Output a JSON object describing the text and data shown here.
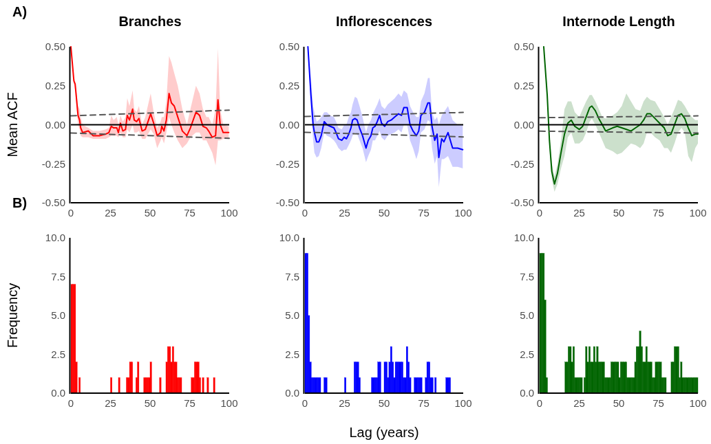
{
  "chart_data": [
    {
      "type": "line",
      "title": "Branches",
      "ylabel": "Mean ACF",
      "annotations": [
        "A)"
      ],
      "xlim": [
        0,
        100
      ],
      "xticks": [
        0,
        25,
        50,
        75,
        100
      ],
      "ylim": [
        -0.5,
        0.5
      ],
      "yticks": [
        {
          "value": -0.5,
          "label": "-0.50"
        },
        -0.25,
        {
          "value": 0,
          "label": "0.00"
        },
        0.25,
        {
          "value": 0.5,
          "label": "0.50"
        }
      ],
      "ref_lines": [
        {
          "axis": "y",
          "value": 0,
          "color": "#000000",
          "line_style": "solid"
        }
      ],
      "series": [
        {
          "type": "line",
          "color": "#555555",
          "line_style": "dashed",
          "x": [
            0,
            100
          ],
          "values": [
            0.057,
            0.094
          ]
        },
        {
          "type": "line",
          "color": "#555555",
          "line_style": "dashed",
          "x": [
            0,
            100
          ],
          "values": [
            -0.053,
            -0.087
          ]
        },
        {
          "type": "line",
          "color": "#ff0000",
          "line_style": "solid",
          "x": [
            0,
            1.9,
            2.7,
            4.5,
            5.5,
            6.2,
            7.4,
            11,
            14,
            18.3,
            22,
            24,
            25.5,
            27,
            29,
            30,
            31.3,
            32.8,
            34.5,
            35.6,
            37,
            39,
            40,
            41.5,
            43,
            45,
            47,
            50.4,
            52.3,
            54.5,
            56.7,
            57.4,
            58.8,
            60.3,
            62,
            63.5,
            65.3,
            67.5,
            70.4,
            73.3,
            75.5,
            79,
            81.3,
            83.4,
            85.6,
            87,
            89.3,
            91.4,
            92.9,
            94.3,
            96.2,
            99.7
          ],
          "values": [
            0.5,
            0.28,
            0.26,
            0.06,
            0.03,
            -0.02,
            -0.05,
            -0.04,
            -0.07,
            -0.07,
            -0.06,
            -0.05,
            -0.01,
            -0.02,
            -0.02,
            -0.05,
            0.01,
            -0.04,
            -0.03,
            0.06,
            0.03,
            0.1,
            0.03,
            0.02,
            0.04,
            -0.04,
            -0.03,
            0.07,
            0.01,
            -0.07,
            -0.05,
            -0.01,
            -0.04,
            0.03,
            0.2,
            0.14,
            0.12,
            0.05,
            -0.04,
            -0.07,
            -0.02,
            0.08,
            0.06,
            -0.01,
            -0.02,
            -0.04,
            -0.08,
            -0.07,
            0.16,
            0,
            -0.05,
            -0.05
          ],
          "upper": [
            0.5,
            0.3,
            0.28,
            0.12,
            0.1,
            0.05,
            0,
            -0.02,
            -0.04,
            -0.04,
            -0.03,
            -0.02,
            0.06,
            0.03,
            0.05,
            0,
            0.06,
            0.02,
            0.05,
            0.17,
            0.12,
            0.22,
            0.1,
            0.08,
            0.12,
            0,
            0.05,
            0.2,
            0.08,
            -0.02,
            0.02,
            0.05,
            0.05,
            0.15,
            0.44,
            0.4,
            0.33,
            0.25,
            0.1,
            0,
            0.1,
            0.25,
            0.2,
            0.1,
            0.05,
            0.05,
            0,
            0.1,
            0.49,
            0.1,
            0,
            -0.01
          ],
          "lower": [
            0.5,
            0.26,
            0.22,
            0,
            -0.03,
            -0.07,
            -0.08,
            -0.08,
            -0.09,
            -0.09,
            -0.09,
            -0.08,
            -0.07,
            -0.07,
            -0.07,
            -0.08,
            -0.05,
            -0.08,
            -0.08,
            -0.03,
            -0.05,
            0,
            -0.05,
            -0.05,
            -0.04,
            -0.09,
            -0.09,
            -0.03,
            -0.06,
            -0.15,
            -0.1,
            -0.08,
            -0.12,
            -0.05,
            0.05,
            0,
            -0.05,
            -0.1,
            -0.15,
            -0.12,
            -0.08,
            -0.05,
            -0.05,
            -0.1,
            -0.1,
            -0.13,
            -0.18,
            -0.26,
            -0.1,
            -0.1,
            -0.09,
            -0.09
          ]
        }
      ]
    },
    {
      "type": "line",
      "title": "Inflorescences",
      "xlim": [
        0,
        100
      ],
      "xticks": [
        0,
        25,
        50,
        75,
        100
      ],
      "ylim": [
        -0.5,
        0.5
      ],
      "yticks": [
        {
          "value": -0.5,
          "label": "-0.50"
        },
        -0.25,
        {
          "value": 0,
          "label": "0.00"
        },
        0.25,
        {
          "value": 0.5,
          "label": "0.50"
        }
      ],
      "ref_lines": [
        {
          "axis": "y",
          "value": 0,
          "color": "#000000",
          "line_style": "solid"
        }
      ],
      "series": [
        {
          "type": "line",
          "color": "#555555",
          "line_style": "dashed",
          "x": [
            0,
            100
          ],
          "values": [
            0.053,
            0.079
          ]
        },
        {
          "type": "line",
          "color": "#555555",
          "line_style": "dashed",
          "x": [
            0,
            100
          ],
          "values": [
            -0.048,
            -0.078
          ]
        },
        {
          "type": "line",
          "color": "#0000ff",
          "line_style": "solid",
          "x": [
            1.9,
            3.8,
            5.2,
            6,
            7.4,
            8.8,
            10.3,
            12.2,
            13.9,
            16,
            18.3,
            19.7,
            21.2,
            23.3,
            24.8,
            26.2,
            27.7,
            29.1,
            30.1,
            31.6,
            33,
            34.5,
            36.4,
            38.6,
            40,
            41.7,
            42.9,
            44.3,
            45.7,
            47.2,
            48.4,
            50.4,
            52.3,
            54.5,
            56.7,
            59.1,
            61,
            62.5,
            64.6,
            66.4,
            68.3,
            70.4,
            71.9,
            73.3,
            75.5,
            77.7,
            78.8,
            80.3,
            82,
            83.5,
            84.6,
            86.4,
            87.8,
            90.4,
            93.3,
            96.5,
            99.7
          ],
          "values": [
            0.5,
            0.19,
            0,
            -0.05,
            -0.11,
            -0.11,
            -0.07,
            0.02,
            0,
            -0.01,
            -0.02,
            -0.05,
            -0.09,
            -0.1,
            -0.08,
            -0.09,
            -0.06,
            -0.02,
            0.03,
            0.04,
            0.03,
            -0.02,
            -0.07,
            -0.15,
            -0.1,
            -0.07,
            -0.02,
            -0.01,
            0.02,
            0.06,
            0.01,
            -0.01,
            0.02,
            0.03,
            0.05,
            0.07,
            0.06,
            0.11,
            0.11,
            0,
            -0.04,
            -0.07,
            -0.04,
            0.06,
            0.08,
            0.14,
            0.14,
            -0.01,
            -0.1,
            -0.06,
            -0.21,
            -0.09,
            -0.11,
            -0.05,
            -0.15,
            -0.15,
            -0.16
          ],
          "upper": [
            0.5,
            0.3,
            0.12,
            0.08,
            0.02,
            0.03,
            0.05,
            0.08,
            0.08,
            0.06,
            0.05,
            0.02,
            -0.02,
            -0.03,
            0,
            0,
            0.05,
            0.08,
            0.13,
            0.18,
            0.17,
            0.12,
            0.05,
            -0.05,
            0,
            0.03,
            0.07,
            0.1,
            0.13,
            0.17,
            0.12,
            0.1,
            0.13,
            0.15,
            0.17,
            0.2,
            0.18,
            0.22,
            0.2,
            0.12,
            0.08,
            0.05,
            0.05,
            0.15,
            0.2,
            0.3,
            0.3,
            0.08,
            0.03,
            0.05,
            0,
            0.06,
            0.08,
            0.12,
            0.03,
            0,
            0
          ],
          "lower": [
            0.5,
            0.1,
            -0.1,
            -0.18,
            -0.21,
            -0.2,
            -0.15,
            -0.05,
            -0.07,
            -0.08,
            -0.1,
            -0.12,
            -0.15,
            -0.17,
            -0.16,
            -0.16,
            -0.13,
            -0.1,
            -0.07,
            -0.05,
            -0.06,
            -0.1,
            -0.15,
            -0.24,
            -0.2,
            -0.16,
            -0.1,
            -0.1,
            -0.07,
            -0.04,
            -0.08,
            -0.1,
            -0.07,
            -0.06,
            -0.05,
            -0.03,
            -0.05,
            0,
            0,
            -0.1,
            -0.15,
            -0.22,
            -0.17,
            -0.05,
            -0.03,
            0.03,
            0.02,
            -0.15,
            -0.25,
            -0.2,
            -0.4,
            -0.22,
            -0.22,
            -0.2,
            -0.27,
            -0.27,
            -0.28
          ]
        }
      ]
    },
    {
      "type": "line",
      "title": "Internode Length",
      "xlim": [
        0,
        100
      ],
      "xticks": [
        0,
        25,
        50,
        75,
        100
      ],
      "ylim": [
        -0.5,
        0.5
      ],
      "yticks": [
        {
          "value": -0.5,
          "label": "-0.50"
        },
        -0.25,
        {
          "value": 0,
          "label": "0.00"
        },
        0.25,
        {
          "value": 0.5,
          "label": "0.50"
        }
      ],
      "ref_lines": [
        {
          "axis": "y",
          "value": 0,
          "color": "#000000",
          "line_style": "solid"
        }
      ],
      "series": [
        {
          "type": "line",
          "color": "#555555",
          "line_style": "dashed",
          "x": [
            0,
            100
          ],
          "values": [
            0.045,
            0.057
          ]
        },
        {
          "type": "line",
          "color": "#555555",
          "line_style": "dashed",
          "x": [
            0,
            100
          ],
          "values": [
            -0.041,
            -0.053
          ]
        },
        {
          "type": "line",
          "color": "#006400",
          "line_style": "solid",
          "x": [
            2.6,
            4.8,
            6.2,
            7.7,
            9.4,
            11.3,
            13.5,
            15.7,
            17.8,
            20,
            22.2,
            25.1,
            27.2,
            29.4,
            31.6,
            33,
            35.2,
            37.4,
            39.6,
            41.7,
            43.9,
            46.1,
            49,
            51.9,
            54.8,
            57.7,
            60.6,
            63.5,
            65.7,
            67.8,
            70,
            72.9,
            75.8,
            78.7,
            80.9,
            83,
            85.2,
            87.4,
            89.6,
            91.7,
            93.9,
            96.1,
            98.3,
            100
          ],
          "values": [
            0.5,
            0.19,
            -0.1,
            -0.3,
            -0.38,
            -0.31,
            -0.18,
            -0.06,
            0.01,
            0.03,
            -0.01,
            -0.03,
            -0.01,
            0.05,
            0.11,
            0.12,
            0.09,
            0.04,
            0,
            -0.04,
            -0.03,
            -0.02,
            -0.01,
            -0.02,
            -0.03,
            -0.04,
            -0.02,
            0,
            0.03,
            0.07,
            0.07,
            0.04,
            0.01,
            -0.02,
            -0.07,
            -0.06,
            0,
            0.06,
            0.07,
            0.04,
            -0.02,
            -0.07,
            -0.06,
            -0.06
          ],
          "upper": [
            0.5,
            0.22,
            -0.05,
            -0.25,
            -0.33,
            -0.25,
            -0.1,
            0.1,
            0.15,
            0.15,
            0.08,
            0.05,
            0.1,
            0.15,
            0.19,
            0.19,
            0.15,
            0.1,
            0.05,
            0.04,
            0.05,
            0.06,
            0.08,
            0.12,
            0.2,
            0.15,
            0.1,
            0.09,
            0.15,
            0.18,
            0.16,
            0.15,
            0.1,
            0.05,
            0,
            0.05,
            0.1,
            0.16,
            0.15,
            0.12,
            0.08,
            0.05,
            0.03,
            0.03
          ],
          "lower": [
            0.5,
            0.15,
            -0.15,
            -0.35,
            -0.43,
            -0.38,
            -0.28,
            -0.2,
            -0.08,
            -0.05,
            -0.12,
            -0.12,
            -0.1,
            -0.05,
            0.02,
            0.04,
            0,
            -0.05,
            -0.1,
            -0.15,
            -0.16,
            -0.17,
            -0.19,
            -0.18,
            -0.15,
            -0.12,
            -0.13,
            -0.15,
            -0.12,
            -0.05,
            -0.05,
            -0.08,
            -0.1,
            -0.15,
            -0.15,
            -0.18,
            -0.12,
            -0.05,
            -0.02,
            -0.05,
            -0.2,
            -0.24,
            -0.15,
            -0.12
          ]
        }
      ]
    },
    {
      "type": "histogram",
      "ylabel": "Frequency",
      "annotations": [
        "B)"
      ],
      "color": "#ff0000",
      "xlim": [
        0,
        100
      ],
      "xticks": [
        0,
        25,
        50,
        75,
        100
      ],
      "ylim": [
        0,
        10
      ],
      "yticks": [
        {
          "value": 0,
          "label": "0.0"
        },
        2.5,
        {
          "value": 5,
          "label": "5.0"
        },
        7.5,
        {
          "value": 10,
          "label": "10.0"
        }
      ],
      "bins": [
        0,
        1,
        2,
        3,
        4,
        5,
        6,
        7,
        8,
        9,
        10,
        11,
        12,
        13,
        14,
        15,
        16,
        17,
        18,
        19,
        20,
        21,
        22,
        23,
        24,
        25,
        26,
        27,
        28,
        29,
        30,
        31,
        32,
        33,
        34,
        35,
        36,
        37,
        38,
        39,
        40,
        41,
        42,
        43,
        44,
        45,
        46,
        47,
        48,
        49,
        50,
        51,
        52,
        53,
        54,
        55,
        56,
        57,
        58,
        59,
        60,
        61,
        62,
        63,
        64,
        65,
        66,
        67,
        68,
        69,
        70,
        71,
        72,
        73,
        74,
        75,
        76,
        77,
        78,
        79,
        80,
        81,
        82,
        83,
        84,
        85,
        86,
        87,
        88,
        89,
        90,
        91,
        92,
        93,
        94,
        95,
        96,
        97,
        98,
        99,
        100
      ],
      "values": [
        7,
        7,
        7,
        2,
        0,
        1,
        0,
        0,
        0,
        0,
        0,
        0,
        0,
        0,
        0,
        0,
        0,
        0,
        0,
        0,
        0,
        0,
        0,
        0,
        0,
        1,
        0,
        0,
        0,
        0,
        1,
        0,
        0,
        0,
        0,
        1,
        1,
        2,
        2,
        0,
        0,
        1,
        2,
        0,
        0,
        0,
        1,
        1,
        1,
        1,
        2,
        0,
        0,
        0,
        0,
        0,
        1,
        0,
        0,
        0,
        2,
        3,
        3,
        2,
        3,
        2,
        2,
        1,
        1,
        1,
        0,
        0,
        0,
        0,
        0,
        0,
        1,
        1,
        2,
        2,
        2,
        1,
        0,
        1,
        0,
        0,
        1,
        0,
        0,
        0,
        1,
        0,
        0,
        0,
        0,
        0,
        0,
        0,
        0,
        0
      ]
    },
    {
      "type": "histogram",
      "xlabel": "Lag (years)",
      "color": "#0000ff",
      "xlim": [
        0,
        100
      ],
      "xticks": [
        0,
        25,
        50,
        75,
        100
      ],
      "ylim": [
        0,
        10
      ],
      "yticks": [
        {
          "value": 0,
          "label": "0.0"
        },
        2.5,
        {
          "value": 5,
          "label": "5.0"
        },
        7.5,
        {
          "value": 10,
          "label": "10.0"
        }
      ],
      "bins": [
        0,
        1,
        2,
        3,
        4,
        5,
        6,
        7,
        8,
        9,
        10,
        11,
        12,
        13,
        14,
        15,
        16,
        17,
        18,
        19,
        20,
        21,
        22,
        23,
        24,
        25,
        26,
        27,
        28,
        29,
        30,
        31,
        32,
        33,
        34,
        35,
        36,
        37,
        38,
        39,
        40,
        41,
        42,
        43,
        44,
        45,
        46,
        47,
        48,
        49,
        50,
        51,
        52,
        53,
        54,
        55,
        56,
        57,
        58,
        59,
        60,
        61,
        62,
        63,
        64,
        65,
        66,
        67,
        68,
        69,
        70,
        71,
        72,
        73,
        74,
        75,
        76,
        77,
        78,
        79,
        80,
        81,
        82,
        83,
        84,
        85,
        86,
        87,
        88,
        89,
        90,
        91,
        92,
        93,
        94,
        95,
        96,
        97,
        98,
        99,
        100
      ],
      "values": [
        9,
        9,
        5,
        2,
        1,
        1,
        1,
        1,
        1,
        1,
        0,
        0,
        1,
        1,
        0,
        0,
        0,
        0,
        0,
        0,
        0,
        0,
        0,
        0,
        0,
        1,
        0,
        0,
        0,
        0,
        0,
        2,
        2,
        2,
        1,
        0,
        0,
        0,
        0,
        0,
        0,
        0,
        1,
        1,
        1,
        1,
        2,
        2,
        0,
        0,
        2,
        2,
        1,
        2,
        3,
        2,
        1,
        2,
        2,
        2,
        2,
        2,
        1,
        1,
        3,
        2,
        1,
        0,
        0,
        1,
        1,
        1,
        1,
        1,
        0,
        0,
        1,
        2,
        2,
        1,
        1,
        0,
        1,
        0,
        0,
        0,
        0,
        0,
        0,
        1,
        1,
        1,
        0,
        0,
        0,
        0,
        0,
        0,
        0,
        0
      ]
    },
    {
      "type": "histogram",
      "color": "#006400",
      "xlim": [
        0,
        100
      ],
      "xticks": [
        0,
        25,
        50,
        75,
        100
      ],
      "ylim": [
        0,
        10
      ],
      "yticks": [
        {
          "value": 0,
          "label": "0.0"
        },
        2.5,
        {
          "value": 5,
          "label": "5.0"
        },
        7.5,
        {
          "value": 10,
          "label": "10.0"
        }
      ],
      "bins": [
        0,
        1,
        2,
        3,
        4,
        5,
        6,
        7,
        8,
        9,
        10,
        11,
        12,
        13,
        14,
        15,
        16,
        17,
        18,
        19,
        20,
        21,
        22,
        23,
        24,
        25,
        26,
        27,
        28,
        29,
        30,
        31,
        32,
        33,
        34,
        35,
        36,
        37,
        38,
        39,
        40,
        41,
        42,
        43,
        44,
        45,
        46,
        47,
        48,
        49,
        50,
        51,
        52,
        53,
        54,
        55,
        56,
        57,
        58,
        59,
        60,
        61,
        62,
        63,
        64,
        65,
        66,
        67,
        68,
        69,
        70,
        71,
        72,
        73,
        74,
        75,
        76,
        77,
        78,
        79,
        80,
        81,
        82,
        83,
        84,
        85,
        86,
        87,
        88,
        89,
        90,
        91,
        92,
        93,
        94,
        95,
        96,
        97,
        98,
        99,
        100
      ],
      "values": [
        9,
        9,
        9,
        6,
        1,
        0,
        0,
        0,
        0,
        0,
        0,
        0,
        0,
        0,
        0,
        0,
        2,
        2,
        3,
        3,
        2,
        3,
        1,
        1,
        1,
        1,
        1,
        0,
        1,
        3,
        2,
        3,
        2,
        2,
        3,
        2,
        3,
        2,
        2,
        2,
        2,
        1,
        1,
        1,
        1,
        2,
        2,
        2,
        2,
        2,
        1,
        2,
        2,
        2,
        2,
        1,
        1,
        1,
        1,
        1,
        2,
        3,
        3,
        4,
        3,
        2,
        2,
        3,
        2,
        2,
        2,
        1,
        1,
        2,
        2,
        2,
        2,
        1,
        1,
        1,
        0,
        0,
        0,
        2,
        2,
        3,
        3,
        3,
        1,
        2,
        1,
        1,
        1,
        1,
        1,
        1,
        1,
        1,
        1,
        1
      ]
    }
  ]
}
